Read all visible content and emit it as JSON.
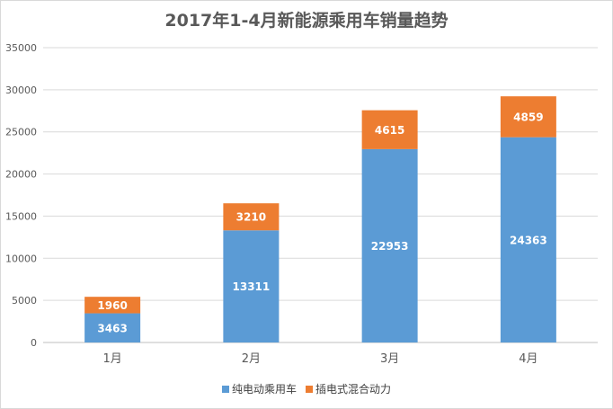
{
  "chart_data": {
    "type": "bar",
    "stacked": true,
    "title": "2017年1-4月新能源乘用车销量趋势",
    "categories": [
      "1月",
      "2月",
      "3月",
      "4月"
    ],
    "series": [
      {
        "name": "纯电动乘用车",
        "color": "#5b9bd5",
        "values": [
          3463,
          13311,
          22953,
          24363
        ]
      },
      {
        "name": "插电式混合动力",
        "color": "#ed7d31",
        "values": [
          1960,
          3210,
          4615,
          4859
        ]
      }
    ],
    "ylim": [
      0,
      35000
    ],
    "yticks": [
      0,
      5000,
      10000,
      15000,
      20000,
      25000,
      30000,
      35000
    ],
    "grid": true,
    "data_labels": true,
    "legend_position": "bottom"
  }
}
